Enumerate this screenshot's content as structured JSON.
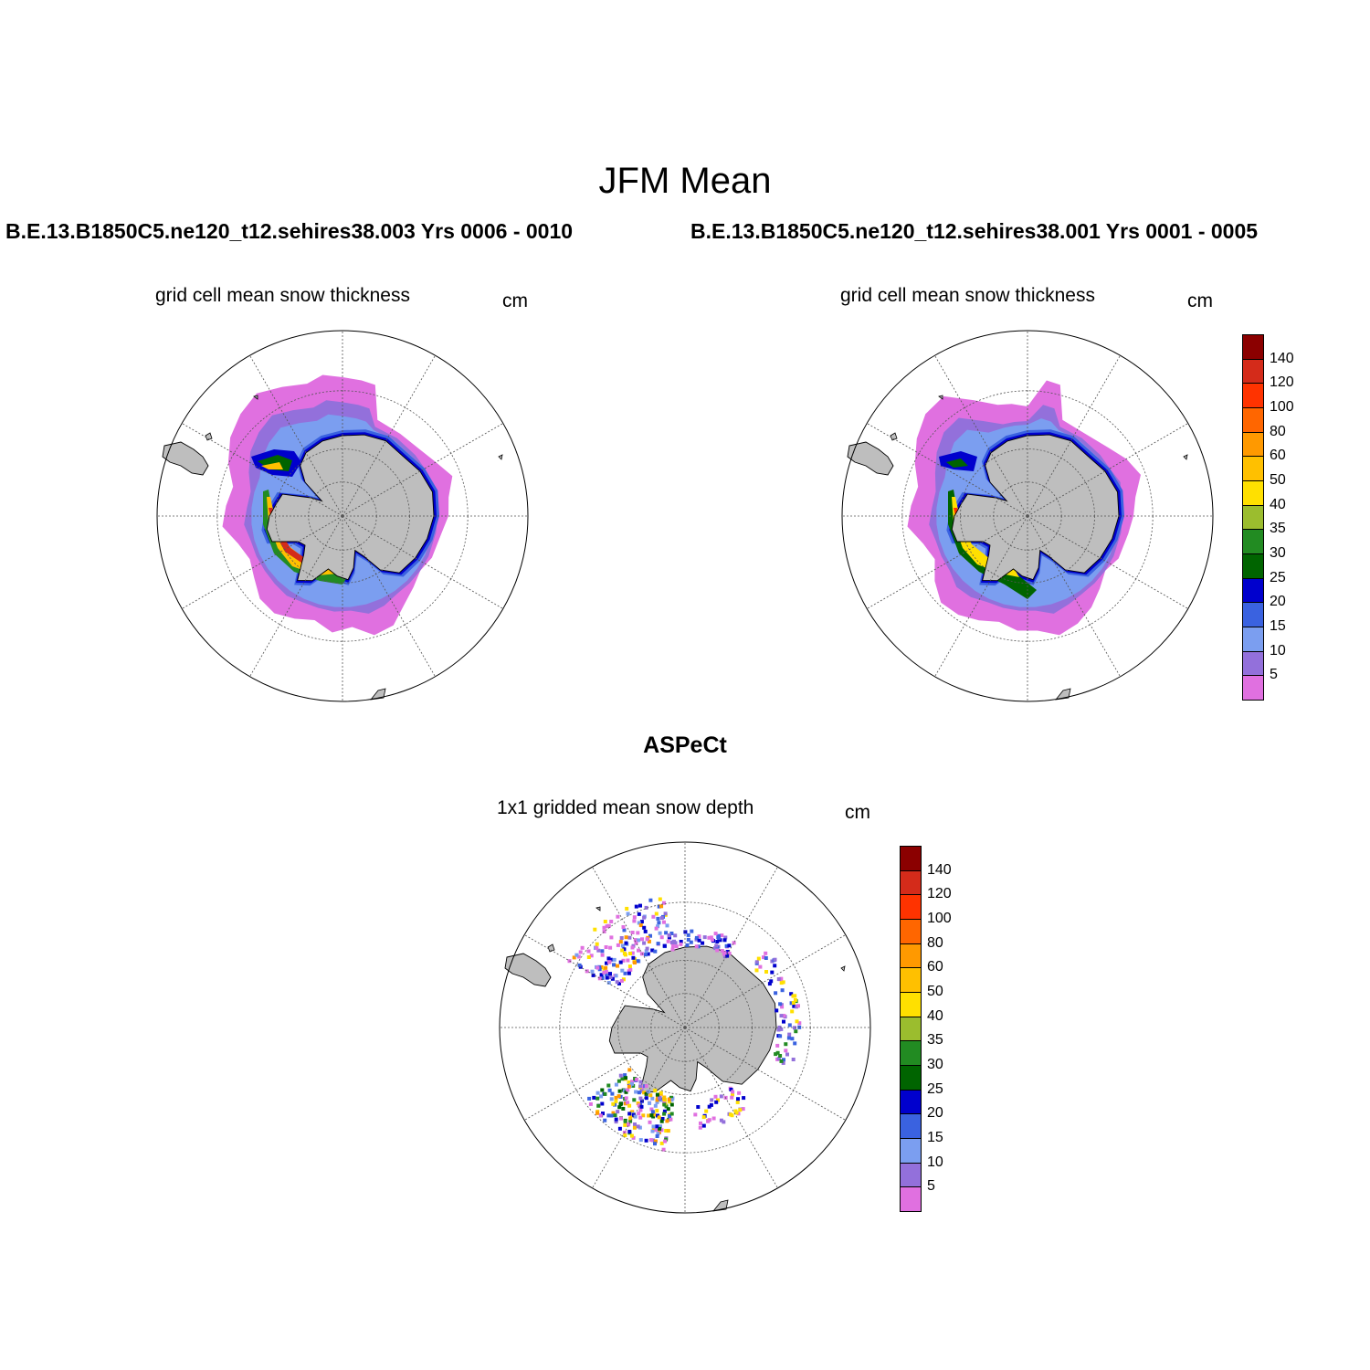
{
  "title": "JFM Mean",
  "panels": [
    {
      "case_label": "B.E.13.B1850C5.ne120_t12.sehires38.003  Yrs 0006 - 0010",
      "plot_title": "grid cell mean snow thickness",
      "units": "cm",
      "map_name": "model-map-left"
    },
    {
      "case_label": "B.E.13.B1850C5.ne120_t12.sehires38.001  Yrs 0001 - 0005",
      "plot_title": "grid cell mean snow thickness",
      "units": "cm",
      "map_name": "model-map-right"
    },
    {
      "case_label": "ASPeCt",
      "plot_title": "1x1 gridded mean snow depth",
      "units": "cm",
      "map_name": "obs-map"
    }
  ],
  "legend": {
    "labels": [
      "140",
      "120",
      "100",
      "80",
      "60",
      "50",
      "40",
      "35",
      "30",
      "25",
      "20",
      "15",
      "10",
      "5"
    ],
    "colors": [
      "#8b0000",
      "#d42b1a",
      "#ff3300",
      "#ff6600",
      "#ff9900",
      "#ffc000",
      "#ffe000",
      "#9bbd2e",
      "#228b22",
      "#006400",
      "#0000cd",
      "#3a62e0",
      "#7b9ef0",
      "#9370db",
      "#e070e0"
    ]
  },
  "colors": {
    "land": "#bebebe",
    "grid": "#555555"
  }
}
